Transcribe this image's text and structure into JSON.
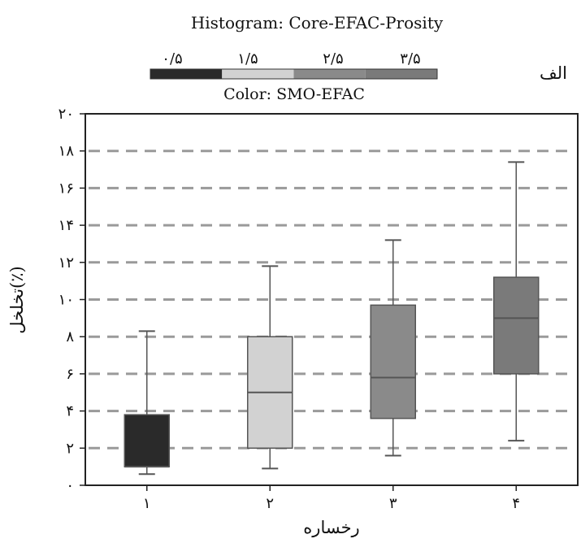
{
  "chart_data": {
    "type": "boxplot",
    "title": "Histogram: Core-EFAC-Prosity",
    "colorbar": {
      "label": "Color: SMO-EFAC",
      "tick_labels": [
        "۰/۵",
        "۱/۵",
        "۲/۵",
        "۳/۵"
      ],
      "colors": [
        "#2a2a2a",
        "#d2d2d2",
        "#8a8a8a",
        "#7a7a7a"
      ]
    },
    "panel_label": "الف",
    "xlabel": "رخساره",
    "ylabel": "تخلخل(٪)",
    "ylim": [
      0,
      20
    ],
    "yticks": [
      {
        "value": 0,
        "label": "۰"
      },
      {
        "value": 2,
        "label": "۲"
      },
      {
        "value": 4,
        "label": "۴"
      },
      {
        "value": 6,
        "label": "۶"
      },
      {
        "value": 8,
        "label": "۸"
      },
      {
        "value": 10,
        "label": "۱۰"
      },
      {
        "value": 12,
        "label": "۱۲"
      },
      {
        "value": 14,
        "label": "۱۴"
      },
      {
        "value": 16,
        "label": "۱۶"
      },
      {
        "value": 18,
        "label": "۱۸"
      },
      {
        "value": 20,
        "label": "۲۰"
      }
    ],
    "grid": "horizontal-dashed",
    "categories": [
      "۱",
      "۲",
      "۳",
      "۴"
    ],
    "boxes": [
      {
        "category": "۱",
        "min": 0.6,
        "q1": 1.0,
        "median": 1.0,
        "q3": 3.8,
        "max": 8.3,
        "color": "#2a2a2a"
      },
      {
        "category": "۲",
        "min": 0.9,
        "q1": 2.0,
        "median": 5.0,
        "q3": 8.0,
        "max": 11.8,
        "color": "#d2d2d2"
      },
      {
        "category": "۳",
        "min": 1.6,
        "q1": 3.6,
        "median": 5.8,
        "q3": 9.7,
        "max": 13.2,
        "color": "#8a8a8a"
      },
      {
        "category": "۴",
        "min": 2.4,
        "q1": 6.0,
        "median": 9.0,
        "q3": 11.2,
        "max": 17.4,
        "color": "#7a7a7a"
      }
    ]
  }
}
